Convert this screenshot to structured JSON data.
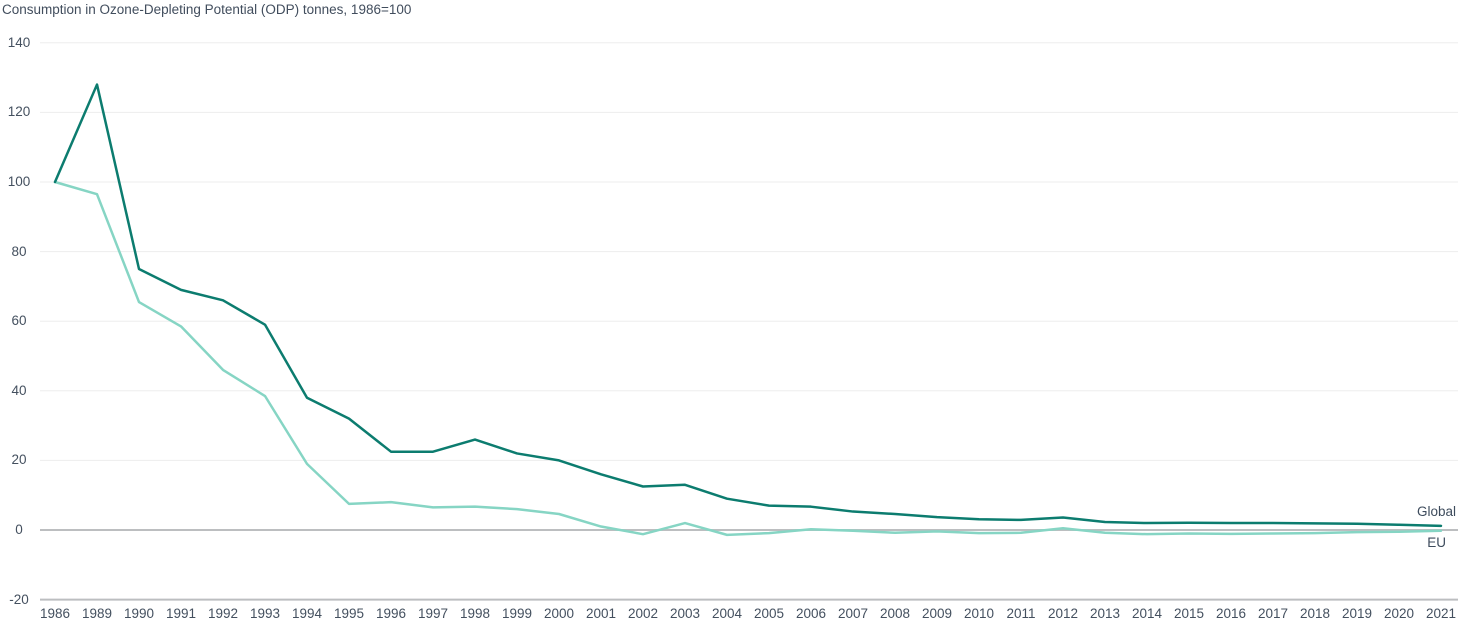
{
  "chart_data": {
    "type": "line",
    "title": "Consumption in Ozone-Depleting Potential (ODP) tonnes, 1986=100",
    "categories": [
      "1986",
      "1989",
      "1990",
      "1991",
      "1992",
      "1993",
      "1994",
      "1995",
      "1996",
      "1997",
      "1998",
      "1999",
      "2000",
      "2001",
      "2002",
      "2003",
      "2004",
      "2005",
      "2006",
      "2007",
      "2008",
      "2009",
      "2010",
      "2011",
      "2012",
      "2013",
      "2014",
      "2015",
      "2016",
      "2017",
      "2018",
      "2019",
      "2020",
      "2021"
    ],
    "series": [
      {
        "name": "Global",
        "color": "#0c7c6f",
        "values": [
          100,
          128,
          75,
          69,
          66,
          59,
          38,
          32,
          22.5,
          22.5,
          26,
          22,
          20,
          16,
          12.5,
          13,
          9,
          7,
          6.7,
          5.3,
          4.6,
          3.7,
          3.1,
          2.9,
          3.6,
          2.3,
          2.0,
          2.1,
          2.0,
          2.0,
          1.9,
          1.8,
          1.5,
          1.2
        ]
      },
      {
        "name": "EU",
        "color": "#86d5c4",
        "values": [
          100,
          96.5,
          65.5,
          58.5,
          46,
          38.5,
          19,
          7.5,
          8,
          6.5,
          6.7,
          6,
          4.6,
          1,
          -1.2,
          2,
          -1.4,
          -0.9,
          0.2,
          -0.2,
          -0.8,
          -0.4,
          -0.9,
          -0.8,
          0.5,
          -0.8,
          -1.2,
          -1.0,
          -1.1,
          -1.0,
          -0.9,
          -0.6,
          -0.5,
          -0.2
        ]
      }
    ],
    "y_ticks": [
      140,
      120,
      100,
      80,
      60,
      40,
      20,
      0,
      -20
    ],
    "ylim": [
      -20,
      140
    ],
    "xlabel": "",
    "ylabel": "",
    "grid": "horizontal",
    "emphasized_gridlines": [
      0,
      -20
    ],
    "legend_position": "inline-right-end-of-lines",
    "colors": {
      "background": "#ffffff",
      "gridline": "#ededed",
      "emphasized_gridline": "#bcbec0",
      "tick_text": "#44505f",
      "title_text": "#414d5d",
      "series_label_text": "#3d4b5c"
    }
  }
}
